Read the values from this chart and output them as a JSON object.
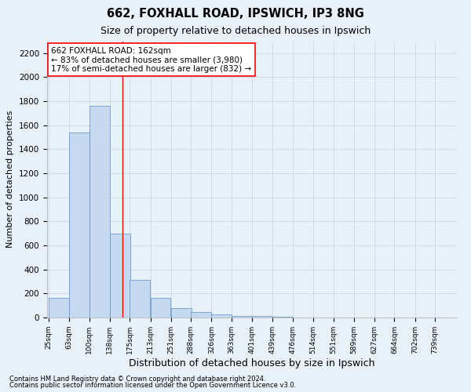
{
  "title1": "662, FOXHALL ROAD, IPSWICH, IP3 8NG",
  "title2": "Size of property relative to detached houses in Ipswich",
  "xlabel": "Distribution of detached houses by size in Ipswich",
  "ylabel": "Number of detached properties",
  "footnote1": "Contains HM Land Registry data © Crown copyright and database right 2024.",
  "footnote2": "Contains public sector information licensed under the Open Government Licence v3.0.",
  "annotation_line1": "662 FOXHALL ROAD: 162sqm",
  "annotation_line2": "← 83% of detached houses are smaller (3,980)",
  "annotation_line3": "17% of semi-detached houses are larger (832) →",
  "property_size": 162,
  "bin_starts": [
    25,
    63,
    100,
    138,
    175,
    213,
    251,
    288,
    326,
    363,
    401,
    439,
    476,
    514,
    551,
    589,
    627,
    664,
    702,
    739
  ],
  "bin_width": 37.5,
  "bar_heights": [
    160,
    1540,
    1760,
    700,
    310,
    160,
    80,
    45,
    25,
    15,
    10,
    5,
    3,
    2,
    1,
    1,
    0,
    0,
    0,
    0
  ],
  "bar_color": "#c5d9f0",
  "bar_edge_color": "#5b8fc9",
  "bar_edge_width": 0.5,
  "vline_color": "red",
  "vline_x": 162,
  "annotation_box_facecolor": "white",
  "annotation_box_edgecolor": "red",
  "ylim": [
    0,
    2300
  ],
  "yticks": [
    0,
    200,
    400,
    600,
    800,
    1000,
    1200,
    1400,
    1600,
    1800,
    2000,
    2200
  ],
  "grid_color": "#c8d8e8",
  "bg_color": "#e8f0f8",
  "title1_fontsize": 10.5,
  "title2_fontsize": 9,
  "ylabel_fontsize": 8,
  "xlabel_fontsize": 9,
  "ytick_fontsize": 7.5,
  "xtick_fontsize": 6.5,
  "footnote_fontsize": 6,
  "annotation_fontsize": 7.5
}
